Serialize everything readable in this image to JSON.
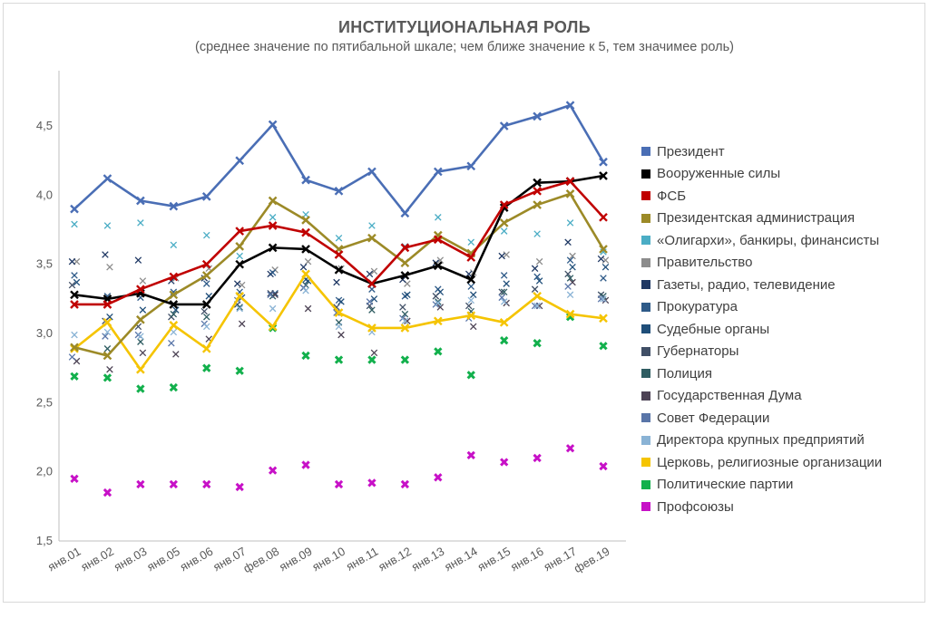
{
  "title": "ИНСТИТУЦИОНАЛЬНАЯ РОЛЬ",
  "subtitle": "(среднее значение по пятибальной шкале; чем ближе значение к 5, тем значимее роль)",
  "chart_data": {
    "type": "line",
    "categories": [
      "янв.01",
      "янв.02",
      "янв.03",
      "янв.05",
      "янв.06",
      "янв.07",
      "фев.08",
      "янв.09",
      "янв.10",
      "янв.11",
      "янв.12",
      "янв.13",
      "янв.14",
      "янв.15",
      "янв.16",
      "янв.17",
      "фев.19"
    ],
    "ylim": [
      1.5,
      4.9
    ],
    "yticks": [
      "1,5",
      "2,0",
      "2,5",
      "3,0",
      "3,5",
      "4,0",
      "4,5"
    ],
    "ytick_values": [
      1.5,
      2.0,
      2.5,
      3.0,
      3.5,
      4.0,
      4.5
    ],
    "grid": false,
    "legend_position": "right",
    "series": [
      {
        "name": "Президент",
        "color": "#4a6eb5",
        "style": "line",
        "values": [
          3.9,
          4.12,
          3.96,
          3.92,
          3.99,
          4.25,
          4.51,
          4.11,
          4.03,
          4.17,
          3.87,
          4.17,
          4.21,
          4.5,
          4.57,
          4.65,
          4.24
        ]
      },
      {
        "name": "Вооруженные силы",
        "color": "#000000",
        "style": "line",
        "values": [
          3.28,
          3.25,
          3.29,
          3.21,
          3.21,
          3.5,
          3.62,
          3.61,
          3.46,
          3.36,
          3.42,
          3.49,
          3.39,
          3.91,
          4.09,
          4.1,
          4.14
        ]
      },
      {
        "name": "ФСБ",
        "color": "#c00000",
        "style": "line",
        "values": [
          3.21,
          3.21,
          3.32,
          3.41,
          3.5,
          3.74,
          3.78,
          3.73,
          3.57,
          3.36,
          3.62,
          3.68,
          3.55,
          3.93,
          4.03,
          4.1,
          3.84
        ]
      },
      {
        "name": "Президентская администрация",
        "color": "#9c8a27",
        "style": "line",
        "values": [
          2.9,
          2.84,
          3.1,
          3.28,
          3.42,
          3.63,
          3.96,
          3.82,
          3.61,
          3.69,
          3.51,
          3.71,
          3.58,
          3.8,
          3.93,
          4.01,
          3.61
        ]
      },
      {
        "name": "«Олигархи», банкиры, финансисты",
        "color": "#4badc5",
        "style": "x",
        "values": [
          3.79,
          3.78,
          3.8,
          3.64,
          3.71,
          3.56,
          3.84,
          3.86,
          3.69,
          3.78,
          3.63,
          3.84,
          3.66,
          3.74,
          3.72,
          3.8,
          3.59
        ]
      },
      {
        "name": "Правительство",
        "color": "#8c8c8c",
        "style": "x",
        "values": [
          3.52,
          3.48,
          3.38,
          3.4,
          3.47,
          3.35,
          3.46,
          3.52,
          3.47,
          3.45,
          3.36,
          3.53,
          3.44,
          3.57,
          3.52,
          3.56,
          3.53
        ]
      },
      {
        "name": "Газеты, радио, телевидение",
        "color": "#1f3864",
        "style": "x",
        "values": [
          3.52,
          3.57,
          3.53,
          3.38,
          3.4,
          3.36,
          3.43,
          3.48,
          3.37,
          3.43,
          3.39,
          3.51,
          3.43,
          3.56,
          3.47,
          3.66,
          3.54
        ]
      },
      {
        "name": "Прокуратура",
        "color": "#2e5a88",
        "style": "x",
        "values": [
          3.42,
          3.27,
          3.26,
          3.3,
          3.36,
          3.3,
          3.44,
          3.39,
          3.24,
          3.32,
          3.27,
          3.32,
          3.34,
          3.42,
          3.41,
          3.53,
          3.4
        ]
      },
      {
        "name": "Судебные органы",
        "color": "#1f4e79",
        "style": "x",
        "values": [
          3.37,
          3.12,
          3.17,
          3.17,
          3.27,
          3.26,
          3.29,
          3.38,
          3.23,
          3.25,
          3.28,
          3.3,
          3.28,
          3.36,
          3.38,
          3.48,
          3.48
        ]
      },
      {
        "name": "Губернаторы",
        "color": "#404f66",
        "style": "x",
        "values": [
          3.35,
          3.09,
          3.05,
          3.12,
          3.16,
          3.21,
          3.29,
          3.33,
          3.19,
          3.2,
          3.19,
          3.27,
          3.2,
          3.3,
          3.32,
          3.43,
          3.28
        ]
      },
      {
        "name": "Полиция",
        "color": "#2f5d62",
        "style": "x",
        "values": [
          2.89,
          2.89,
          2.94,
          3.14,
          3.12,
          3.19,
          3.27,
          3.35,
          3.08,
          3.17,
          3.14,
          3.23,
          3.16,
          3.3,
          3.27,
          3.4,
          3.27
        ]
      },
      {
        "name": "Государственная Дума",
        "color": "#4d4355",
        "style": "x",
        "values": [
          2.8,
          2.74,
          2.86,
          2.85,
          2.96,
          3.07,
          3.28,
          3.18,
          2.99,
          2.86,
          3.09,
          3.19,
          3.05,
          3.22,
          3.2,
          3.37,
          3.24
        ]
      },
      {
        "name": "Совет Федерации",
        "color": "#5975a8",
        "style": "x",
        "values": [
          2.83,
          2.98,
          2.99,
          2.93,
          3.07,
          3.24,
          3.28,
          3.33,
          3.15,
          3.23,
          3.11,
          3.21,
          3.11,
          3.26,
          3.2,
          3.34,
          3.25
        ]
      },
      {
        "name": "Директора крупных предприятий",
        "color": "#8ab3d5",
        "style": "x",
        "values": [
          2.99,
          3.01,
          2.98,
          3.01,
          3.05,
          3.18,
          3.18,
          3.31,
          3.05,
          3.01,
          3.09,
          3.22,
          3.24,
          3.23,
          3.2,
          3.28,
          3.25
        ]
      },
      {
        "name": "Церковь, религиозные организации",
        "color": "#f5c400",
        "style": "line",
        "values": [
          2.89,
          3.08,
          2.74,
          3.06,
          2.89,
          3.27,
          3.05,
          3.43,
          3.15,
          3.04,
          3.04,
          3.09,
          3.13,
          3.08,
          3.27,
          3.14,
          3.11
        ]
      },
      {
        "name": "Политические партии",
        "color": "#12b04c",
        "style": "x",
        "values": [
          2.69,
          2.68,
          2.6,
          2.61,
          2.75,
          2.73,
          3.04,
          2.84,
          2.81,
          2.81,
          2.81,
          2.87,
          2.7,
          2.95,
          2.93,
          3.12,
          2.91
        ]
      },
      {
        "name": "Профсоюзы",
        "color": "#c711c7",
        "style": "x",
        "values": [
          1.95,
          1.85,
          1.91,
          1.91,
          1.91,
          1.89,
          2.01,
          2.05,
          1.91,
          1.92,
          1.91,
          1.96,
          2.12,
          2.07,
          2.1,
          2.17,
          2.04
        ]
      }
    ]
  }
}
